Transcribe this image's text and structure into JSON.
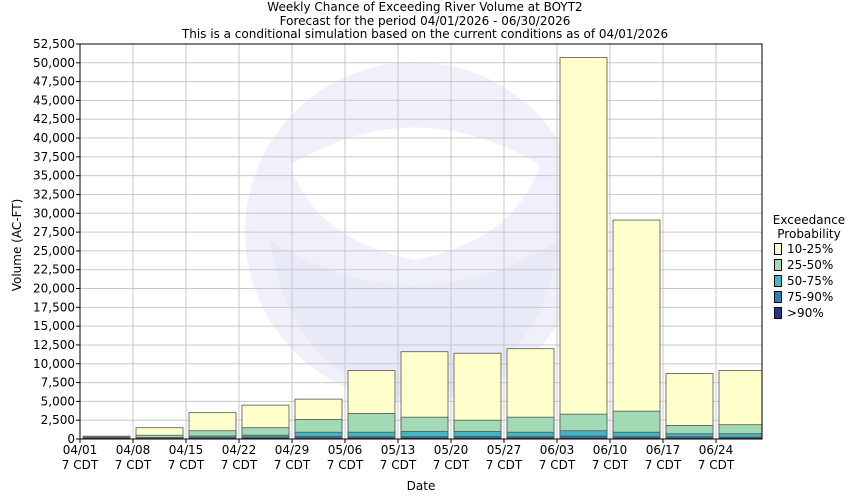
{
  "chart_data": {
    "type": "bar",
    "title_lines": [
      "Weekly Chance of Exceeding River Volume at BOYT2",
      "Forecast for the period 04/01/2026 - 06/30/2026",
      "This is a conditional simulation based on the current conditions as of 04/01/2026"
    ],
    "xlabel": "Date",
    "ylabel": "Volume (AC-FT)",
    "ylim": [
      0,
      52500
    ],
    "y_ticks": [
      "0",
      "2,500",
      "5,000",
      "7,500",
      "10,000",
      "12,500",
      "15,000",
      "17,500",
      "20,000",
      "22,500",
      "25,000",
      "27,500",
      "30,000",
      "32,500",
      "35,000",
      "37,500",
      "40,000",
      "42,500",
      "45,000",
      "47,500",
      "50,000",
      "52,500"
    ],
    "x_tick_labels": [
      [
        "04/01",
        "7 CDT"
      ],
      [
        "04/08",
        "7 CDT"
      ],
      [
        "04/15",
        "7 CDT"
      ],
      [
        "04/22",
        "7 CDT"
      ],
      [
        "04/29",
        "7 CDT"
      ],
      [
        "05/06",
        "7 CDT"
      ],
      [
        "05/13",
        "7 CDT"
      ],
      [
        "05/20",
        "7 CDT"
      ],
      [
        "05/27",
        "7 CDT"
      ],
      [
        "06/03",
        "7 CDT"
      ],
      [
        "06/10",
        "7 CDT"
      ],
      [
        "06/17",
        "7 CDT"
      ],
      [
        "06/24",
        "7 CDT"
      ]
    ],
    "stack_levels": [
      "10%",
      "25%",
      "50%",
      "75%",
      "90%"
    ],
    "bars": [
      [
        380,
        250,
        150,
        100,
        60
      ],
      [
        1500,
        500,
        200,
        120,
        80
      ],
      [
        3500,
        1100,
        400,
        200,
        100
      ],
      [
        4500,
        1500,
        500,
        250,
        130
      ],
      [
        5300,
        2600,
        900,
        350,
        150
      ],
      [
        9100,
        3400,
        900,
        300,
        150
      ],
      [
        11600,
        2900,
        1000,
        300,
        150
      ],
      [
        11400,
        2500,
        1000,
        350,
        150
      ],
      [
        12000,
        2900,
        900,
        300,
        150
      ],
      [
        50700,
        3300,
        1100,
        400,
        150
      ],
      [
        29100,
        3700,
        900,
        300,
        150
      ],
      [
        8700,
        1800,
        700,
        300,
        150
      ],
      [
        9100,
        1900,
        700,
        250,
        150
      ]
    ],
    "grid": true,
    "legend_position": "right",
    "legend": {
      "title_lines": [
        "Exceedance",
        "Probability"
      ],
      "entries": [
        {
          "label": "10-25%",
          "color": "#ffffcc"
        },
        {
          "label": "25-50%",
          "color": "#a1dab4"
        },
        {
          "label": "50-75%",
          "color": "#41b6c4"
        },
        {
          "label": "75-90%",
          "color": "#2c7fb8"
        },
        {
          "label": ">90%",
          "color": "#253494"
        }
      ]
    },
    "watermark_text": "NATIONAL OCEANIC AND ATMOSPHERIC ADMINISTRATION · U.S. DEPARTMENT OF COMMERCE · NOAA"
  }
}
